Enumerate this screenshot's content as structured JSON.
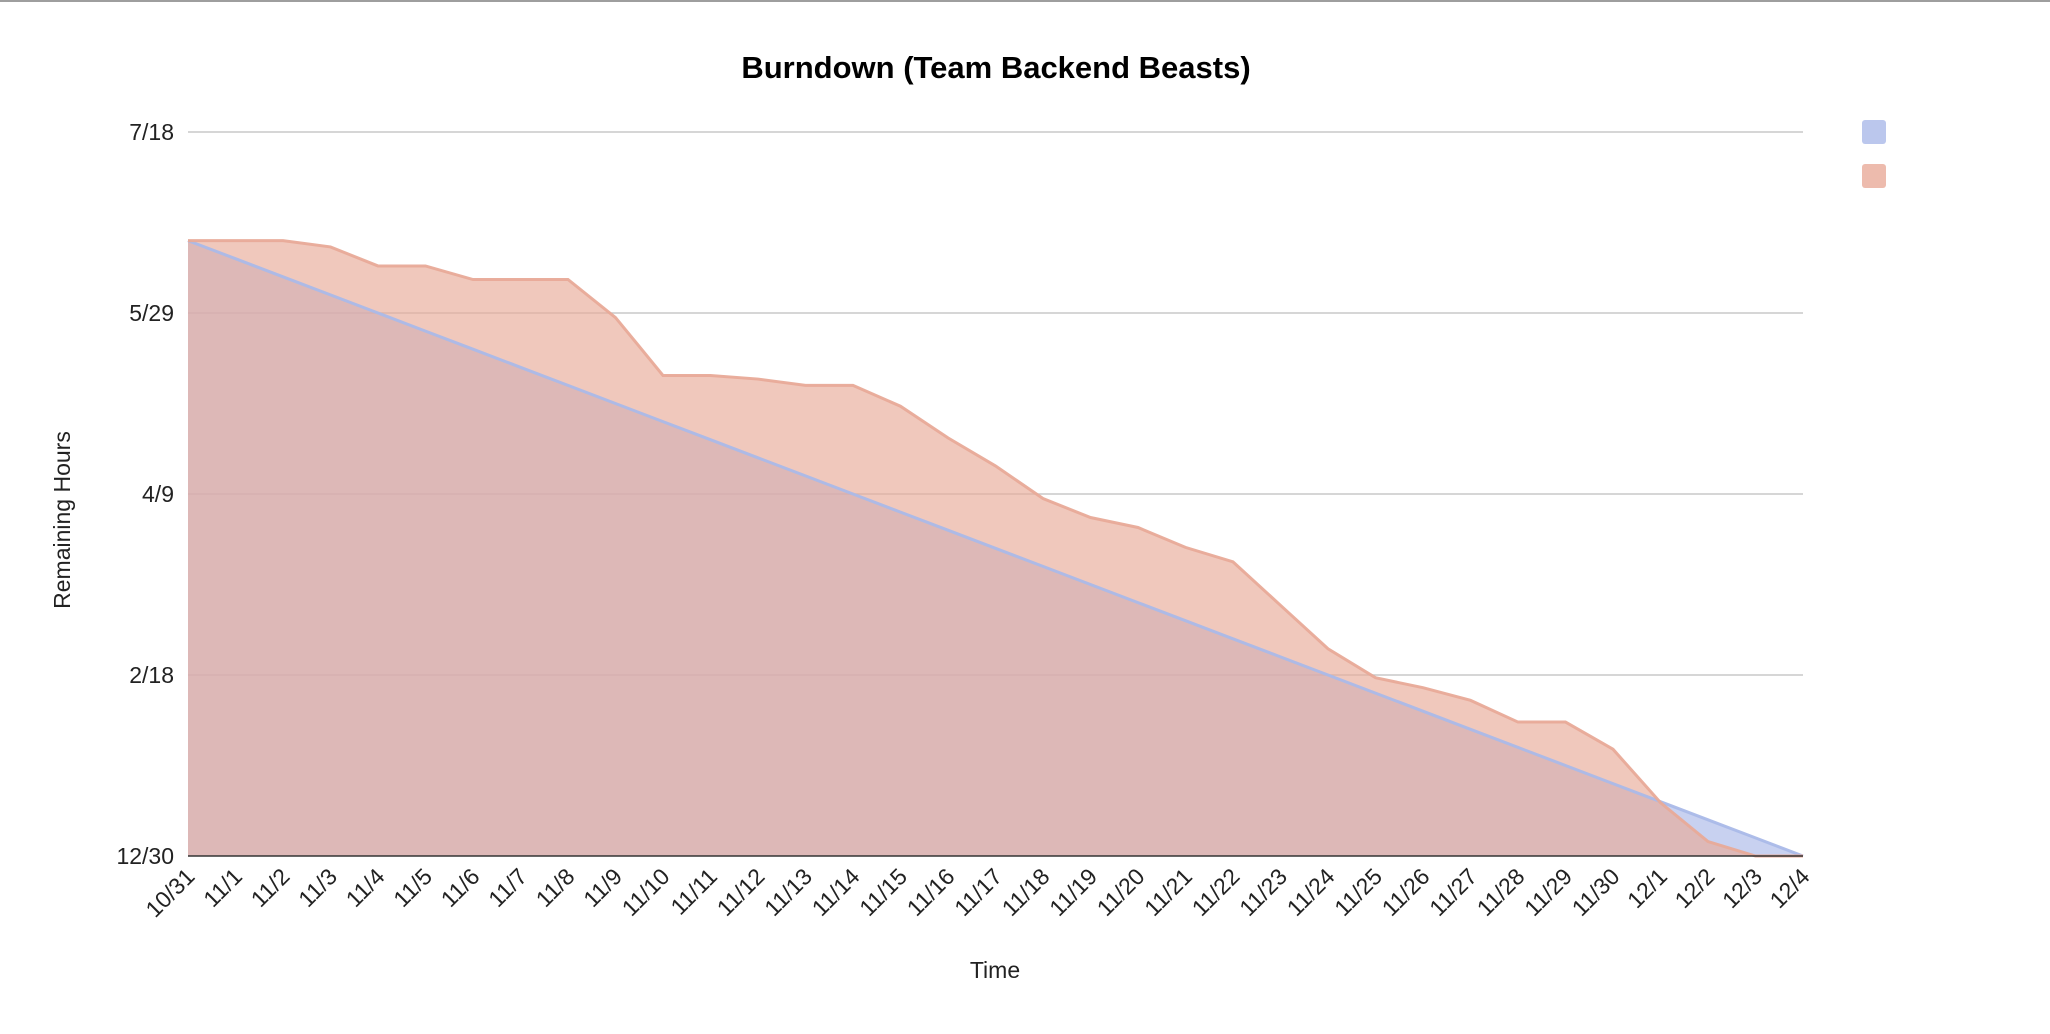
{
  "chart_data": {
    "type": "area",
    "title": "Burndown (Team Backend Beasts)",
    "xlabel": "Time",
    "ylabel": "Remaining Hours",
    "categories": [
      "10/31",
      "11/1",
      "11/2",
      "11/3",
      "11/4",
      "11/5",
      "11/6",
      "11/7",
      "11/8",
      "11/9",
      "11/10",
      "11/11",
      "11/12",
      "11/13",
      "11/14",
      "11/15",
      "11/16",
      "11/17",
      "11/18",
      "11/19",
      "11/20",
      "11/21",
      "11/22",
      "11/23",
      "11/24",
      "11/25",
      "11/26",
      "11/27",
      "11/28",
      "11/29",
      "11/30",
      "12/1",
      "12/2",
      "12/3",
      "12/4"
    ],
    "y_tick_labels": [
      "12/30",
      "2/18",
      "4/9",
      "5/29",
      "7/18"
    ],
    "ylim": [
      0,
      800
    ],
    "grid": true,
    "legend_position": "top-right",
    "series": [
      {
        "color": "#aab9e8",
        "values": [
          680,
          660,
          640,
          620,
          600,
          580,
          560,
          540,
          520,
          500,
          480,
          460,
          440,
          420,
          400,
          380,
          360,
          340,
          320,
          300,
          280,
          260,
          240,
          220,
          200,
          180,
          160,
          140,
          120,
          100,
          80,
          60,
          40,
          20,
          0
        ]
      },
      {
        "color": "#e8aa98",
        "values": [
          680,
          680,
          680,
          673,
          652,
          652,
          637,
          637,
          637,
          595,
          531,
          531,
          527,
          520,
          520,
          497,
          462,
          431,
          395,
          374,
          363,
          341,
          325,
          277,
          229,
          197,
          186,
          172,
          148,
          148,
          118,
          59,
          16,
          0,
          0
        ]
      }
    ]
  }
}
